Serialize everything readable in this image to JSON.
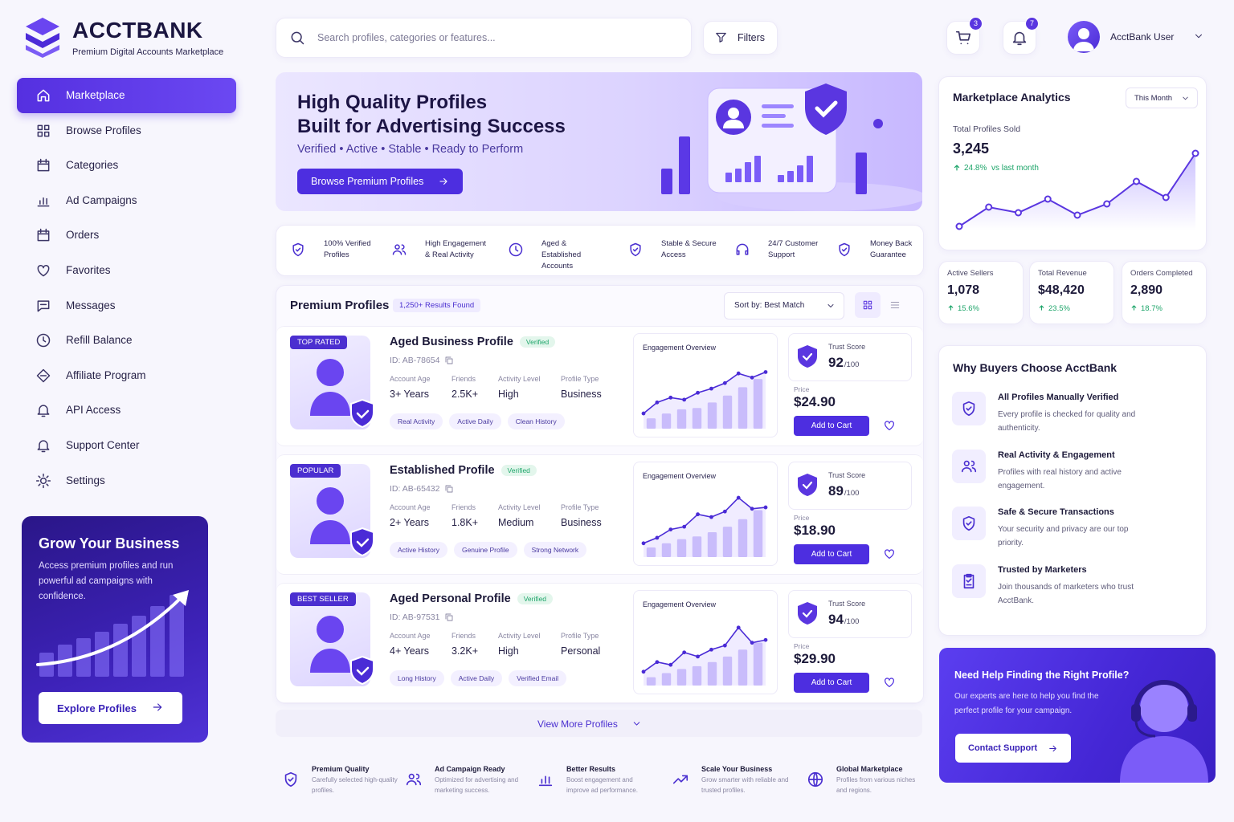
{
  "brand": {
    "name": "ACCTBANK",
    "tagline": "Premium Digital Accounts Marketplace"
  },
  "topbar": {
    "search": "Search profiles, categories or features...",
    "filters": "Filters",
    "cart_count": "3",
    "notification_count": "7",
    "user": "AcctBank User"
  },
  "nav": [
    "Marketplace",
    "Browse Profiles",
    "Categories",
    "Ad Campaigns",
    "Orders",
    "Favorites",
    "Messages",
    "Refill Balance",
    "Affiliate Program",
    "API Access",
    "Support Center",
    "Settings"
  ],
  "promo": {
    "title": "Grow Your Business",
    "text": "Access premium profiles and run powerful ad campaigns with confidence.",
    "button": "Explore Profiles"
  },
  "hero": {
    "title": [
      "High Quality Profiles",
      "Built for Advertising Success"
    ],
    "subtitle": "Verified • Active • Stable • Ready to Perform",
    "button": "Browse Premium Profiles"
  },
  "features": [
    "100% Verified Profiles",
    "High Engagement & Real Activity",
    "Aged & Established Accounts",
    "Stable & Secure Access",
    "24/7 Customer Support",
    "Money Back Guarantee"
  ],
  "profiles": {
    "title": "Premium Profiles",
    "results": "1,250+ Results Found",
    "sort": "Sort by: Best Match",
    "field_labels": [
      "Account Age",
      "Friends",
      "Activity Level",
      "Profile Type"
    ],
    "verified": "Verified",
    "chart_title": "Engagement Overview",
    "trust_label": "Trust Score",
    "trust_max": "/100",
    "price_label": "Price",
    "add_to_cart": "Add to Cart",
    "items": [
      {
        "badge": "TOP RATED",
        "name": "Aged Business Profile",
        "id": "ID: AB-78654",
        "fields": [
          "3+ Years",
          "2.5K+",
          "High",
          "Business"
        ],
        "tags": [
          "Real Activity",
          "Active Daily",
          "Clean History"
        ],
        "trust_score": 92,
        "price": "$24.90",
        "engagement_bars": [
          15,
          22,
          28,
          30,
          38,
          48,
          60,
          72
        ],
        "engagement_line": [
          22,
          38,
          45,
          42,
          52,
          58,
          66,
          80,
          74,
          82
        ]
      },
      {
        "badge": "POPULAR",
        "name": "Established Profile",
        "id": "ID: AB-65432",
        "fields": [
          "2+ Years",
          "1.8K+",
          "Medium",
          "Business"
        ],
        "tags": [
          "Active History",
          "Genuine Profile",
          "Strong Network"
        ],
        "trust_score": 89,
        "price": "$18.90",
        "engagement_bars": [
          14,
          20,
          26,
          30,
          36,
          44,
          55,
          68
        ],
        "engagement_line": [
          20,
          28,
          40,
          44,
          62,
          58,
          66,
          86,
          70,
          72
        ]
      },
      {
        "badge": "BEST SELLER",
        "name": "Aged Personal Profile",
        "id": "ID: AB-97531",
        "fields": [
          "4+ Years",
          "3.2K+",
          "High",
          "Personal"
        ],
        "tags": [
          "Long History",
          "Active Daily",
          "Verified Email"
        ],
        "trust_score": 94,
        "price": "$29.90",
        "engagement_bars": [
          12,
          18,
          24,
          28,
          34,
          42,
          52,
          62
        ],
        "engagement_line": [
          20,
          34,
          30,
          48,
          42,
          52,
          58,
          84,
          62,
          66
        ]
      }
    ],
    "view_more": "View More Profiles"
  },
  "benefits": [
    {
      "title": "Premium Quality",
      "text": "Carefully selected high-quality profiles."
    },
    {
      "title": "Ad Campaign Ready",
      "text": "Optimized for advertising and marketing success."
    },
    {
      "title": "Better Results",
      "text": "Boost engagement and improve ad performance."
    },
    {
      "title": "Scale Your Business",
      "text": "Grow smarter with reliable and trusted profiles."
    },
    {
      "title": "Global Marketplace",
      "text": "Profiles from various niches and regions."
    }
  ],
  "analytics": {
    "title": "Marketplace Analytics",
    "period": "This Month",
    "total_label": "Total Profiles Sold",
    "total": "3,245",
    "change": "24.8%",
    "change_note": "vs last month",
    "trend": [
      5,
      29,
      22,
      39,
      19,
      33,
      61,
      41,
      96
    ],
    "stats": [
      {
        "label": "Active Sellers",
        "value": "1,078",
        "change": "15.6%"
      },
      {
        "label": "Total Revenue",
        "value": "$48,420",
        "change": "23.5%"
      },
      {
        "label": "Orders Completed",
        "value": "2,890",
        "change": "18.7%"
      }
    ]
  },
  "why": {
    "title": "Why Buyers Choose AcctBank",
    "items": [
      {
        "title": "All Profiles Manually Verified",
        "text": "Every profile is checked for quality and authenticity."
      },
      {
        "title": "Real Activity & Engagement",
        "text": "Profiles with real history and active engagement."
      },
      {
        "title": "Safe & Secure Transactions",
        "text": "Your security and privacy are our top priority."
      },
      {
        "title": "Trusted by Marketers",
        "text": "Join thousands of marketers who trust AcctBank."
      }
    ]
  },
  "help": {
    "title": "Need Help Finding the Right Profile?",
    "text": "Our experts are here to help you find the perfect profile for your campaign.",
    "button": "Contact Support"
  }
}
